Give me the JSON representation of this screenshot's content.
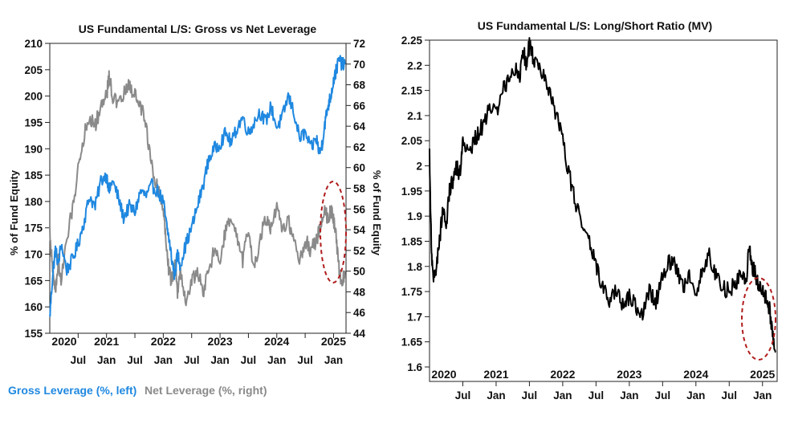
{
  "chart_data": [
    {
      "type": "line",
      "title": "US Fundamental L/S: Gross vs Net Leverage",
      "ylabel_left": "% of Fund Equity",
      "ylabel_right": "% of Fund Equity",
      "ylim_left": [
        155,
        210
      ],
      "ylim_right": [
        44,
        72
      ],
      "yticks_left": [
        155,
        160,
        165,
        170,
        175,
        180,
        185,
        190,
        195,
        200,
        205,
        210
      ],
      "yticks_right": [
        44,
        46,
        48,
        50,
        52,
        54,
        56,
        58,
        60,
        62,
        64,
        66,
        68,
        70,
        72
      ],
      "x_month_labels": [
        "Jul",
        "Jan",
        "Jul",
        "Jan",
        "Jul",
        "Jan",
        "Jul",
        "Jan",
        "Jul",
        "Jan"
      ],
      "x_year_labels": [
        "2020",
        "2021",
        "2022",
        "2023",
        "2024",
        "2025"
      ],
      "x_range": [
        2020.0,
        2025.22
      ],
      "annotation": "dashed red ellipse around latest values",
      "series": [
        {
          "name": "Gross Leverage (%, left)",
          "axis": "left",
          "color": "#1f88e0",
          "x": [
            2020.0,
            2020.05,
            2020.1,
            2020.15,
            2020.2,
            2020.3,
            2020.4,
            2020.5,
            2020.6,
            2020.7,
            2020.8,
            2020.9,
            2021.0,
            2021.05,
            2021.1,
            2021.2,
            2021.3,
            2021.4,
            2021.5,
            2021.6,
            2021.7,
            2021.8,
            2021.9,
            2022.0,
            2022.05,
            2022.1,
            2022.15,
            2022.2,
            2022.25,
            2022.3,
            2022.4,
            2022.5,
            2022.6,
            2022.7,
            2022.8,
            2022.9,
            2023.0,
            2023.1,
            2023.2,
            2023.3,
            2023.4,
            2023.5,
            2023.6,
            2023.7,
            2023.8,
            2023.9,
            2024.0,
            2024.1,
            2024.2,
            2024.3,
            2024.4,
            2024.5,
            2024.6,
            2024.7,
            2024.75,
            2024.8,
            2024.85,
            2024.9,
            2024.95,
            2025.0,
            2025.05,
            2025.1,
            2025.15,
            2025.2
          ],
          "values": [
            158,
            166,
            171,
            168,
            172,
            167,
            169,
            172,
            176,
            181,
            179,
            184,
            185,
            182,
            184,
            181,
            177,
            179,
            178,
            182,
            181,
            183,
            182,
            180,
            176,
            173,
            169,
            166,
            170,
            168,
            172,
            175,
            179,
            183,
            188,
            190,
            191,
            193,
            191,
            194,
            196,
            193,
            195,
            197,
            195,
            198,
            194,
            196,
            200,
            197,
            192,
            193,
            190,
            192,
            189,
            191,
            195,
            198,
            200,
            203,
            205,
            207,
            206,
            206
          ]
        },
        {
          "name": "Net Leverage (%, right)",
          "axis": "right",
          "color": "#8a8a8a",
          "x": [
            2020.0,
            2020.05,
            2020.1,
            2020.15,
            2020.2,
            2020.3,
            2020.4,
            2020.5,
            2020.6,
            2020.7,
            2020.8,
            2020.9,
            2021.0,
            2021.05,
            2021.1,
            2021.2,
            2021.3,
            2021.4,
            2021.5,
            2021.6,
            2021.7,
            2021.8,
            2021.9,
            2022.0,
            2022.05,
            2022.1,
            2022.15,
            2022.2,
            2022.25,
            2022.3,
            2022.4,
            2022.5,
            2022.6,
            2022.7,
            2022.8,
            2022.9,
            2023.0,
            2023.1,
            2023.2,
            2023.3,
            2023.4,
            2023.5,
            2023.6,
            2023.7,
            2023.8,
            2023.9,
            2024.0,
            2024.1,
            2024.2,
            2024.3,
            2024.4,
            2024.5,
            2024.6,
            2024.7,
            2024.75,
            2024.8,
            2024.85,
            2024.9,
            2024.95,
            2025.0,
            2025.05,
            2025.1,
            2025.15,
            2025.2
          ],
          "values": [
            54,
            50,
            48,
            51,
            49,
            53,
            56,
            60,
            63,
            65,
            64,
            66,
            67,
            69,
            67,
            66,
            67,
            68,
            67,
            66,
            64,
            60,
            58,
            56,
            53,
            50,
            49,
            51,
            48,
            50,
            47,
            49,
            50,
            48,
            50,
            52,
            51,
            54,
            55,
            53,
            51,
            54,
            50,
            53,
            55,
            54,
            56,
            54,
            55,
            53,
            51,
            53,
            52,
            53,
            54,
            55,
            56,
            55,
            56,
            55,
            53,
            50,
            49,
            50
          ]
        }
      ]
    },
    {
      "type": "line",
      "title": "US Fundamental L/S: Long/Short Ratio (MV)",
      "ylabel": "",
      "ylim": [
        1.6,
        2.25
      ],
      "yticks": [
        "1.6",
        "1.65",
        "1.7",
        "1.75",
        "1.8",
        "1.85",
        "1.9",
        "1.95",
        "2",
        "2.05",
        "2.1",
        "2.15",
        "2.2",
        "2.25"
      ],
      "x_month_labels": [
        "Jul",
        "Jan",
        "Jul",
        "Jan",
        "Jul",
        "Jan",
        "Jul",
        "Jan",
        "Jul",
        "Jan"
      ],
      "x_year_labels": [
        "2020",
        "2021",
        "2022",
        "2023",
        "2024",
        "2025"
      ],
      "x_range": [
        2020.0,
        2025.22
      ],
      "annotation": "dashed red ellipse around latest values",
      "series": [
        {
          "name": "Long/Short Ratio (MV)",
          "color": "#000000",
          "x": [
            2020.0,
            2020.03,
            2020.06,
            2020.1,
            2020.15,
            2020.2,
            2020.25,
            2020.3,
            2020.35,
            2020.4,
            2020.45,
            2020.5,
            2020.6,
            2020.7,
            2020.8,
            2020.9,
            2021.0,
            2021.1,
            2021.2,
            2021.3,
            2021.35,
            2021.4,
            2021.45,
            2021.5,
            2021.55,
            2021.6,
            2021.7,
            2021.8,
            2021.9,
            2022.0,
            2022.1,
            2022.2,
            2022.3,
            2022.4,
            2022.5,
            2022.6,
            2022.7,
            2022.8,
            2022.9,
            2023.0,
            2023.1,
            2023.2,
            2023.3,
            2023.4,
            2023.5,
            2023.6,
            2023.7,
            2023.8,
            2023.9,
            2024.0,
            2024.1,
            2024.2,
            2024.3,
            2024.4,
            2024.5,
            2024.6,
            2024.7,
            2024.75,
            2024.8,
            2024.85,
            2024.9,
            2024.95,
            2025.0,
            2025.05,
            2025.1,
            2025.15,
            2025.2
          ],
          "values": [
            2.02,
            1.82,
            1.77,
            1.8,
            1.85,
            1.92,
            1.88,
            1.95,
            1.97,
            2.0,
            1.98,
            2.05,
            2.02,
            2.06,
            2.08,
            2.12,
            2.1,
            2.15,
            2.18,
            2.2,
            2.17,
            2.24,
            2.2,
            2.24,
            2.22,
            2.2,
            2.18,
            2.15,
            2.1,
            2.05,
            1.98,
            1.92,
            1.88,
            1.85,
            1.8,
            1.76,
            1.73,
            1.75,
            1.72,
            1.74,
            1.72,
            1.71,
            1.75,
            1.73,
            1.78,
            1.81,
            1.8,
            1.76,
            1.78,
            1.74,
            1.8,
            1.82,
            1.78,
            1.76,
            1.75,
            1.77,
            1.79,
            1.76,
            1.84,
            1.8,
            1.78,
            1.76,
            1.75,
            1.74,
            1.72,
            1.66,
            1.63
          ]
        }
      ]
    }
  ]
}
